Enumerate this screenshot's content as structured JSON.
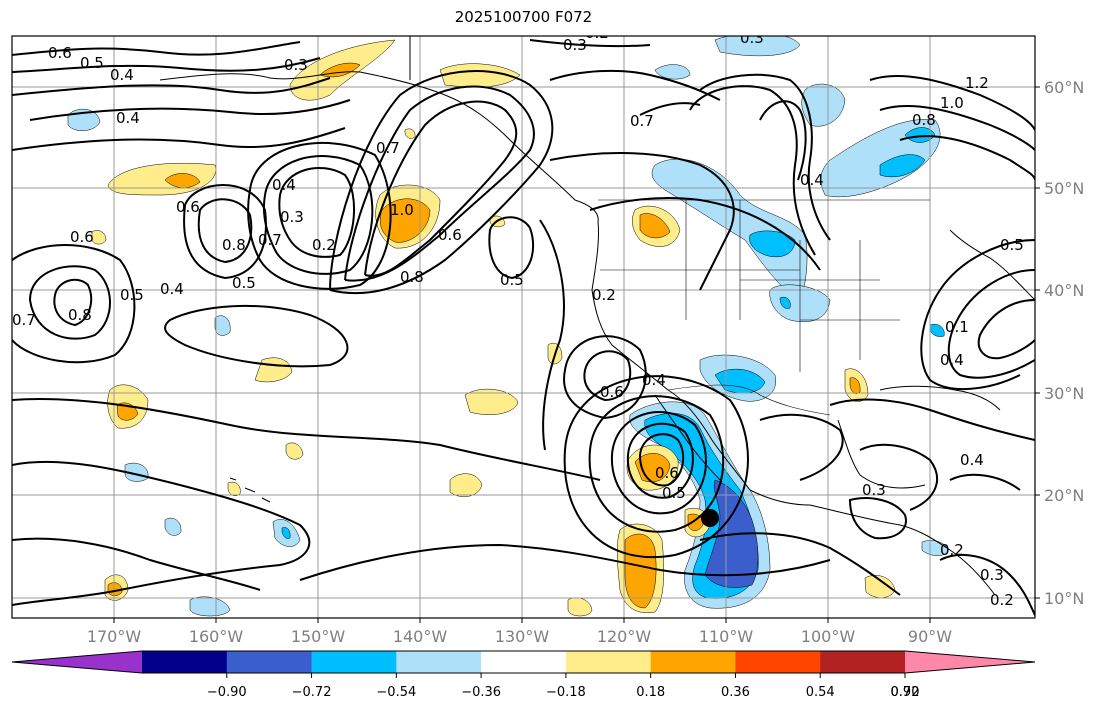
{
  "title": "2025100700 F072",
  "lat_labels": [
    "60°N",
    "50°N",
    "40°N",
    "30°N",
    "20°N",
    "10°N"
  ],
  "lon_labels": [
    "170°W",
    "160°W",
    "150°W",
    "140°W",
    "130°W",
    "120°W",
    "110°W",
    "100°W",
    "90°W"
  ],
  "colorbar": {
    "ticks": [
      "−0.90",
      "−0.72",
      "−0.54",
      "−0.36",
      "−0.18",
      "0.18",
      "0.36",
      "0.54",
      "0.72",
      "0.90"
    ],
    "colors": [
      "#9932cc",
      "#00008b",
      "#3a5fcd",
      "#00bfff",
      "#afe0fa",
      "#ffffff",
      "#ffec8b",
      "#ffa500",
      "#ff4500",
      "#b22222",
      "#ff88aa"
    ]
  },
  "contour_labels": [
    {
      "text": "0.6"
    },
    {
      "text": "0.5"
    },
    {
      "text": "0.4"
    },
    {
      "text": "0.3"
    },
    {
      "text": "0.4"
    },
    {
      "text": "0.6"
    },
    {
      "text": "0.7"
    },
    {
      "text": "0.8"
    },
    {
      "text": "0.5"
    },
    {
      "text": "0.4"
    },
    {
      "text": "0.5"
    },
    {
      "text": "0.7"
    },
    {
      "text": "0.8"
    },
    {
      "text": "0.6"
    },
    {
      "text": "0.4"
    },
    {
      "text": "0.3"
    },
    {
      "text": "0.2"
    },
    {
      "text": "0.7"
    },
    {
      "text": "1.0"
    },
    {
      "text": "0.8"
    },
    {
      "text": "0.6"
    },
    {
      "text": "0.5"
    },
    {
      "text": "0.7"
    },
    {
      "text": "0.2"
    },
    {
      "text": "0.6"
    },
    {
      "text": "0.4"
    },
    {
      "text": "0.3"
    },
    {
      "text": "0.4"
    },
    {
      "text": "0.3"
    },
    {
      "text": "0.2"
    },
    {
      "text": "0.4"
    },
    {
      "text": "1.2"
    },
    {
      "text": "1.0"
    },
    {
      "text": "0.8"
    },
    {
      "text": "0.5"
    },
    {
      "text": "0.4"
    },
    {
      "text": "0.3"
    },
    {
      "text": "0.2"
    },
    {
      "text": "0.3"
    },
    {
      "text": "0.2"
    },
    {
      "text": "0.6"
    },
    {
      "text": "0.5"
    },
    {
      "text": "0.1"
    }
  ]
}
